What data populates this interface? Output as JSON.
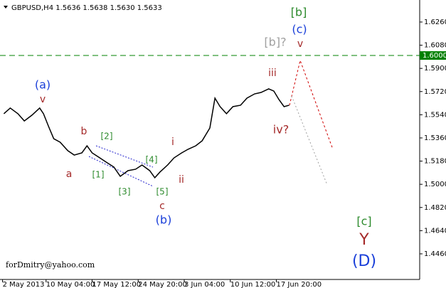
{
  "chart_data": {
    "type": "line",
    "title": "GBPUSD,H4  1.5636 1.5638 1.5630 1.5633",
    "watermark": "forDmitry@yahoo.com",
    "x": [
      3,
      8,
      14,
      19,
      25,
      31,
      34,
      38,
      42,
      47,
      53,
      58,
      64,
      68,
      72,
      78,
      83,
      89,
      94,
      100,
      106,
      111,
      117,
      121,
      125,
      131,
      136,
      142,
      147,
      153,
      158,
      164,
      168,
      172,
      177,
      182,
      188,
      193,
      199,
      204,
      210,
      214,
      218,
      222,
      226
    ],
    "series": [
      {
        "color": "#000000",
        "values": [
          1.5548,
          1.5592,
          1.5548,
          1.5492,
          1.5537,
          1.5592,
          1.5548,
          1.5448,
          1.5354,
          1.5327,
          1.5261,
          1.5227,
          1.5244,
          1.5299,
          1.5244,
          1.5205,
          1.5172,
          1.5134,
          1.5062,
          1.5106,
          1.5117,
          1.515,
          1.5106,
          1.5051,
          1.5095,
          1.515,
          1.5205,
          1.5244,
          1.5272,
          1.5299,
          1.5338,
          1.5437,
          1.5669,
          1.5603,
          1.5548,
          1.5603,
          1.5614,
          1.5669,
          1.5702,
          1.5713,
          1.5741,
          1.5724,
          1.5658,
          1.5603,
          1.5614
        ]
      }
    ],
    "xlim": [
      0,
      328
    ],
    "xticks": [
      {
        "value": 2,
        "label": "2 May 2013"
      },
      {
        "value": 36,
        "label": "10 May 04:00"
      },
      {
        "value": 72,
        "label": "17 May 12:00"
      },
      {
        "value": 108,
        "label": "24 May 20:00"
      },
      {
        "value": 144,
        "label": "3 Jun 04:00"
      },
      {
        "value": 180,
        "label": "10 Jun 12:00"
      },
      {
        "value": 216,
        "label": "17 Jun 20:00"
      }
    ],
    "ylim": [
      1.4261,
      1.6431
    ],
    "yticks": [
      {
        "value": 1.626,
        "label": "1.6260"
      },
      {
        "value": 1.608,
        "label": "1.6080"
      },
      {
        "value": 1.59,
        "label": "1.5900"
      },
      {
        "value": 1.572,
        "label": "1.5720"
      },
      {
        "value": 1.554,
        "label": "1.5540"
      },
      {
        "value": 1.536,
        "label": "1.5360"
      },
      {
        "value": 1.518,
        "label": "1.5180"
      },
      {
        "value": 1.5,
        "label": "1.5000"
      },
      {
        "value": 1.482,
        "label": "1.4820"
      },
      {
        "value": 1.464,
        "label": "1.4640"
      },
      {
        "value": 1.446,
        "label": "1.4460"
      }
    ],
    "hline": {
      "value": 1.6,
      "label": "1.6000",
      "color": "#008000"
    },
    "annotations": [
      {
        "text": "(a)",
        "color": "#1a3fd9"
      },
      {
        "text": "v",
        "color": "#a52a2a"
      },
      {
        "text": "b",
        "color": "#a52a2a"
      },
      {
        "text": "[2]",
        "color": "#2e8b2e"
      },
      {
        "text": "a",
        "color": "#a52a2a"
      },
      {
        "text": "[1]",
        "color": "#2e8b2e"
      },
      {
        "text": "[3]",
        "color": "#2e8b2e"
      },
      {
        "text": "[4]",
        "color": "#2e8b2e"
      },
      {
        "text": "[5]",
        "color": "#2e8b2e"
      },
      {
        "text": "c",
        "color": "#a52a2a"
      },
      {
        "text": "(b)",
        "color": "#1a3fd9"
      },
      {
        "text": "i",
        "color": "#a52a2a"
      },
      {
        "text": "ii",
        "color": "#a52a2a"
      },
      {
        "text": "iii",
        "color": "#a52a2a"
      },
      {
        "text": "iv?",
        "color": "#a52a2a"
      },
      {
        "text": "[b]?",
        "color": "#a0a0a0"
      },
      {
        "text": "v",
        "color": "#a52a2a"
      },
      {
        "text": "(c)",
        "color": "#1a3fd9"
      },
      {
        "text": "[b]",
        "color": "#2e8b2e"
      },
      {
        "text": "[c]",
        "color": "#2e8b2e"
      },
      {
        "text": "Y",
        "color": "#a52a2a"
      },
      {
        "text": "(D)",
        "color": "#1a3fd9"
      }
    ]
  }
}
